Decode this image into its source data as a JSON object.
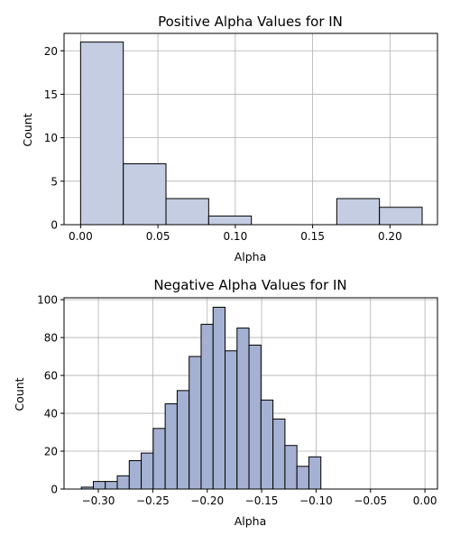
{
  "chart_data": [
    {
      "type": "bar",
      "title": "Positive Alpha Values for IN",
      "xlabel": "Alpha",
      "ylabel": "Count",
      "color": "#c4cde2",
      "edge_color": "#000000",
      "xlim": [
        -0.0107,
        0.2307
      ],
      "ylim": [
        0,
        22
      ],
      "x_ticks": [
        0.0,
        0.05,
        0.1,
        0.15,
        0.2
      ],
      "x_tick_labels": [
        "0.00",
        "0.05",
        "0.10",
        "0.15",
        "0.20"
      ],
      "y_ticks": [
        0,
        5,
        10,
        15,
        20
      ],
      "y_tick_labels": [
        "0",
        "5",
        "10",
        "15",
        "20"
      ],
      "grid": true,
      "bins": [
        {
          "x0": 0.0,
          "x1": 0.0276,
          "count": 21
        },
        {
          "x0": 0.0276,
          "x1": 0.0552,
          "count": 7
        },
        {
          "x0": 0.0552,
          "x1": 0.0828,
          "count": 3
        },
        {
          "x0": 0.0828,
          "x1": 0.1104,
          "count": 1
        },
        {
          "x0": 0.1104,
          "x1": 0.138,
          "count": 0
        },
        {
          "x0": 0.138,
          "x1": 0.1656,
          "count": 0
        },
        {
          "x0": 0.1656,
          "x1": 0.1932,
          "count": 3
        },
        {
          "x0": 0.1932,
          "x1": 0.2208,
          "count": 2
        }
      ]
    },
    {
      "type": "bar",
      "title": "Negative Alpha Values for IN",
      "xlabel": "Alpha",
      "ylabel": "Count",
      "color": "#a5b1d2",
      "edge_color": "#000000",
      "xlim": [
        -0.3315,
        0.0115
      ],
      "ylim": [
        0,
        101
      ],
      "x_ticks": [
        -0.3,
        -0.25,
        -0.2,
        -0.15,
        -0.1,
        -0.05,
        0.0
      ],
      "x_tick_labels": [
        "−0.30",
        "−0.25",
        "−0.20",
        "−0.15",
        "−0.10",
        "−0.05",
        "0.00"
      ],
      "y_ticks": [
        0,
        20,
        40,
        60,
        80,
        100
      ],
      "y_tick_labels": [
        "0",
        "20",
        "40",
        "60",
        "80",
        "100"
      ],
      "grid": true,
      "bins": [
        {
          "x0": -0.3156,
          "x1": -0.3046,
          "count": 1
        },
        {
          "x0": -0.3046,
          "x1": -0.2936,
          "count": 4
        },
        {
          "x0": -0.2936,
          "x1": -0.2826,
          "count": 4
        },
        {
          "x0": -0.2826,
          "x1": -0.2716,
          "count": 7
        },
        {
          "x0": -0.2716,
          "x1": -0.2606,
          "count": 15
        },
        {
          "x0": -0.2606,
          "x1": -0.2496,
          "count": 19
        },
        {
          "x0": -0.2496,
          "x1": -0.2386,
          "count": 32
        },
        {
          "x0": -0.2386,
          "x1": -0.2276,
          "count": 45
        },
        {
          "x0": -0.2276,
          "x1": -0.2166,
          "count": 52
        },
        {
          "x0": -0.2166,
          "x1": -0.2056,
          "count": 70
        },
        {
          "x0": -0.2056,
          "x1": -0.1946,
          "count": 87
        },
        {
          "x0": -0.1946,
          "x1": -0.1836,
          "count": 96
        },
        {
          "x0": -0.1836,
          "x1": -0.1726,
          "count": 73
        },
        {
          "x0": -0.1726,
          "x1": -0.1616,
          "count": 85
        },
        {
          "x0": -0.1616,
          "x1": -0.1506,
          "count": 76
        },
        {
          "x0": -0.1506,
          "x1": -0.1396,
          "count": 47
        },
        {
          "x0": -0.1396,
          "x1": -0.1286,
          "count": 37
        },
        {
          "x0": -0.1286,
          "x1": -0.1176,
          "count": 23
        },
        {
          "x0": -0.1176,
          "x1": -0.1066,
          "count": 12
        },
        {
          "x0": -0.1066,
          "x1": -0.0956,
          "count": 17
        }
      ]
    }
  ]
}
